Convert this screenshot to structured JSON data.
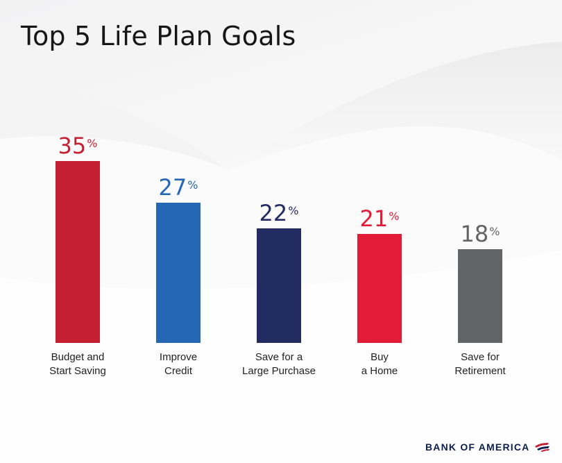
{
  "title": "Top 5 Life Plan Goals",
  "brand": "BANK OF AMERICA",
  "colors": {
    "red": "#c41f33",
    "blue": "#2567b4",
    "navy": "#222c61",
    "bright_red": "#e21c37",
    "gray": "#636466"
  },
  "chart_data": {
    "type": "bar",
    "categories": [
      [
        "Budget and",
        "Start Saving"
      ],
      [
        "Improve",
        "Credit"
      ],
      [
        "Save for a",
        "Large Purchase"
      ],
      [
        "Buy",
        "a Home"
      ],
      [
        "Save for",
        "Retirement"
      ]
    ],
    "values": [
      35,
      27,
      22,
      21,
      18
    ],
    "value_labels": [
      "35",
      "27",
      "22",
      "21",
      "18"
    ],
    "unit": "%",
    "bar_colors": [
      "#c41f33",
      "#2567b4",
      "#222c61",
      "#e21c37",
      "#636466"
    ],
    "ylim": [
      0,
      35
    ],
    "grid": false,
    "legend": "none"
  }
}
